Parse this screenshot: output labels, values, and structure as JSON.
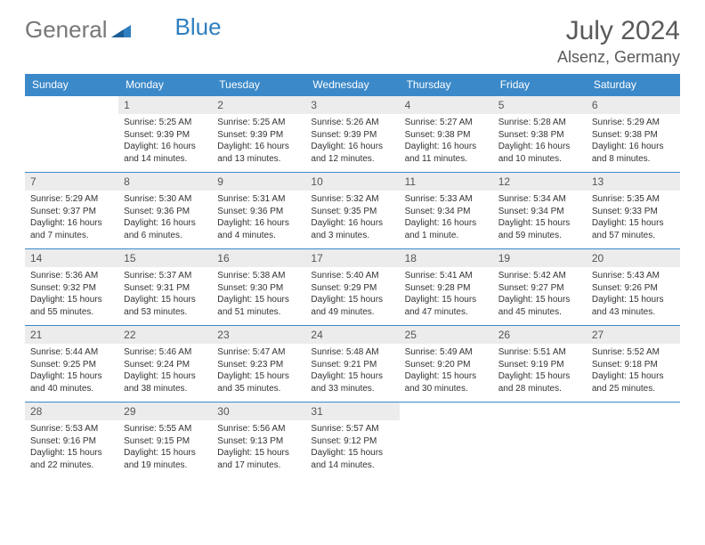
{
  "logo": {
    "text1": "General",
    "text2": "Blue"
  },
  "title": "July 2024",
  "location": "Alsenz, Germany",
  "colors": {
    "header_bg": "#3b89c9",
    "header_text": "#ffffff",
    "daynum_bg": "#ececec",
    "border": "#3b89c9",
    "text": "#333333",
    "title_text": "#5a5a5a"
  },
  "columns": [
    "Sunday",
    "Monday",
    "Tuesday",
    "Wednesday",
    "Thursday",
    "Friday",
    "Saturday"
  ],
  "weeks": [
    [
      {
        "n": "",
        "sr": "",
        "ss": "",
        "dl": ""
      },
      {
        "n": "1",
        "sr": "Sunrise: 5:25 AM",
        "ss": "Sunset: 9:39 PM",
        "dl": "Daylight: 16 hours and 14 minutes."
      },
      {
        "n": "2",
        "sr": "Sunrise: 5:25 AM",
        "ss": "Sunset: 9:39 PM",
        "dl": "Daylight: 16 hours and 13 minutes."
      },
      {
        "n": "3",
        "sr": "Sunrise: 5:26 AM",
        "ss": "Sunset: 9:39 PM",
        "dl": "Daylight: 16 hours and 12 minutes."
      },
      {
        "n": "4",
        "sr": "Sunrise: 5:27 AM",
        "ss": "Sunset: 9:38 PM",
        "dl": "Daylight: 16 hours and 11 minutes."
      },
      {
        "n": "5",
        "sr": "Sunrise: 5:28 AM",
        "ss": "Sunset: 9:38 PM",
        "dl": "Daylight: 16 hours and 10 minutes."
      },
      {
        "n": "6",
        "sr": "Sunrise: 5:29 AM",
        "ss": "Sunset: 9:38 PM",
        "dl": "Daylight: 16 hours and 8 minutes."
      }
    ],
    [
      {
        "n": "7",
        "sr": "Sunrise: 5:29 AM",
        "ss": "Sunset: 9:37 PM",
        "dl": "Daylight: 16 hours and 7 minutes."
      },
      {
        "n": "8",
        "sr": "Sunrise: 5:30 AM",
        "ss": "Sunset: 9:36 PM",
        "dl": "Daylight: 16 hours and 6 minutes."
      },
      {
        "n": "9",
        "sr": "Sunrise: 5:31 AM",
        "ss": "Sunset: 9:36 PM",
        "dl": "Daylight: 16 hours and 4 minutes."
      },
      {
        "n": "10",
        "sr": "Sunrise: 5:32 AM",
        "ss": "Sunset: 9:35 PM",
        "dl": "Daylight: 16 hours and 3 minutes."
      },
      {
        "n": "11",
        "sr": "Sunrise: 5:33 AM",
        "ss": "Sunset: 9:34 PM",
        "dl": "Daylight: 16 hours and 1 minute."
      },
      {
        "n": "12",
        "sr": "Sunrise: 5:34 AM",
        "ss": "Sunset: 9:34 PM",
        "dl": "Daylight: 15 hours and 59 minutes."
      },
      {
        "n": "13",
        "sr": "Sunrise: 5:35 AM",
        "ss": "Sunset: 9:33 PM",
        "dl": "Daylight: 15 hours and 57 minutes."
      }
    ],
    [
      {
        "n": "14",
        "sr": "Sunrise: 5:36 AM",
        "ss": "Sunset: 9:32 PM",
        "dl": "Daylight: 15 hours and 55 minutes."
      },
      {
        "n": "15",
        "sr": "Sunrise: 5:37 AM",
        "ss": "Sunset: 9:31 PM",
        "dl": "Daylight: 15 hours and 53 minutes."
      },
      {
        "n": "16",
        "sr": "Sunrise: 5:38 AM",
        "ss": "Sunset: 9:30 PM",
        "dl": "Daylight: 15 hours and 51 minutes."
      },
      {
        "n": "17",
        "sr": "Sunrise: 5:40 AM",
        "ss": "Sunset: 9:29 PM",
        "dl": "Daylight: 15 hours and 49 minutes."
      },
      {
        "n": "18",
        "sr": "Sunrise: 5:41 AM",
        "ss": "Sunset: 9:28 PM",
        "dl": "Daylight: 15 hours and 47 minutes."
      },
      {
        "n": "19",
        "sr": "Sunrise: 5:42 AM",
        "ss": "Sunset: 9:27 PM",
        "dl": "Daylight: 15 hours and 45 minutes."
      },
      {
        "n": "20",
        "sr": "Sunrise: 5:43 AM",
        "ss": "Sunset: 9:26 PM",
        "dl": "Daylight: 15 hours and 43 minutes."
      }
    ],
    [
      {
        "n": "21",
        "sr": "Sunrise: 5:44 AM",
        "ss": "Sunset: 9:25 PM",
        "dl": "Daylight: 15 hours and 40 minutes."
      },
      {
        "n": "22",
        "sr": "Sunrise: 5:46 AM",
        "ss": "Sunset: 9:24 PM",
        "dl": "Daylight: 15 hours and 38 minutes."
      },
      {
        "n": "23",
        "sr": "Sunrise: 5:47 AM",
        "ss": "Sunset: 9:23 PM",
        "dl": "Daylight: 15 hours and 35 minutes."
      },
      {
        "n": "24",
        "sr": "Sunrise: 5:48 AM",
        "ss": "Sunset: 9:21 PM",
        "dl": "Daylight: 15 hours and 33 minutes."
      },
      {
        "n": "25",
        "sr": "Sunrise: 5:49 AM",
        "ss": "Sunset: 9:20 PM",
        "dl": "Daylight: 15 hours and 30 minutes."
      },
      {
        "n": "26",
        "sr": "Sunrise: 5:51 AM",
        "ss": "Sunset: 9:19 PM",
        "dl": "Daylight: 15 hours and 28 minutes."
      },
      {
        "n": "27",
        "sr": "Sunrise: 5:52 AM",
        "ss": "Sunset: 9:18 PM",
        "dl": "Daylight: 15 hours and 25 minutes."
      }
    ],
    [
      {
        "n": "28",
        "sr": "Sunrise: 5:53 AM",
        "ss": "Sunset: 9:16 PM",
        "dl": "Daylight: 15 hours and 22 minutes."
      },
      {
        "n": "29",
        "sr": "Sunrise: 5:55 AM",
        "ss": "Sunset: 9:15 PM",
        "dl": "Daylight: 15 hours and 19 minutes."
      },
      {
        "n": "30",
        "sr": "Sunrise: 5:56 AM",
        "ss": "Sunset: 9:13 PM",
        "dl": "Daylight: 15 hours and 17 minutes."
      },
      {
        "n": "31",
        "sr": "Sunrise: 5:57 AM",
        "ss": "Sunset: 9:12 PM",
        "dl": "Daylight: 15 hours and 14 minutes."
      },
      {
        "n": "",
        "sr": "",
        "ss": "",
        "dl": ""
      },
      {
        "n": "",
        "sr": "",
        "ss": "",
        "dl": ""
      },
      {
        "n": "",
        "sr": "",
        "ss": "",
        "dl": ""
      }
    ]
  ]
}
